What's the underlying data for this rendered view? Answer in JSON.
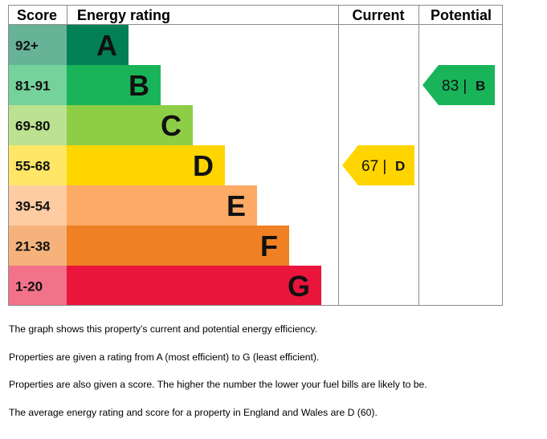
{
  "chart_data": {
    "type": "bar",
    "headers": {
      "score": "Score",
      "rating": "Energy rating",
      "current": "Current",
      "potential": "Potential"
    },
    "bands": [
      {
        "letter": "A",
        "range": "92+",
        "color": "#008054",
        "score_color": "#66b398"
      },
      {
        "letter": "B",
        "range": "81-91",
        "color": "#19b459",
        "score_color": "#75d29b"
      },
      {
        "letter": "C",
        "range": "69-80",
        "color": "#8dce46",
        "score_color": "#bbe290"
      },
      {
        "letter": "D",
        "range": "55-68",
        "color": "#ffd500",
        "score_color": "#ffe666"
      },
      {
        "letter": "E",
        "range": "39-54",
        "color": "#fcaa65",
        "score_color": "#fdcca3"
      },
      {
        "letter": "F",
        "range": "21-38",
        "color": "#ef8023",
        "score_color": "#f5b37b"
      },
      {
        "letter": "G",
        "range": "1-20",
        "color": "#e9153b",
        "score_color": "#f27389"
      }
    ],
    "current": {
      "score": 67,
      "letter": "D",
      "label": "67 |",
      "color": "#ffd500"
    },
    "potential": {
      "score": 83,
      "letter": "B",
      "label": "83 |",
      "color": "#19b459"
    }
  },
  "notes": [
    "The graph shows this property’s current and potential energy efficiency.",
    "Properties are given a rating from A (most efficient) to G (least efficient).",
    "Properties are also given a score. The higher the number the lower your fuel bills are likely to be.",
    "The average energy rating and score for a property in England and Wales are D (60)."
  ]
}
